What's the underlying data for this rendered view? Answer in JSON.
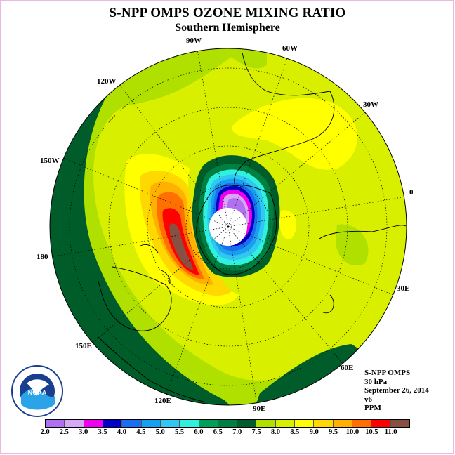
{
  "header": {
    "title": "S-NPP OMPS OZONE MIXING RATIO",
    "subtitle": "Southern Hemisphere"
  },
  "longitude_labels": [
    "90W",
    "60W",
    "30W",
    "0",
    "30E",
    "60E",
    "90E",
    "120E",
    "150E",
    "180",
    "150W",
    "120W"
  ],
  "info": {
    "instrument": "S-NPP OMPS",
    "level": "30 hPa",
    "date": "September 26, 2014",
    "version": "v6",
    "units": "PPM"
  },
  "colorbar": {
    "ticks": [
      "2.0",
      "2.5",
      "3.0",
      "3.5",
      "4.0",
      "4.5",
      "5.0",
      "5.5",
      "6.0",
      "6.5",
      "7.0",
      "7.5",
      "8.0",
      "8.5",
      "9.0",
      "9.5",
      "10.0",
      "10.5",
      "11.0"
    ],
    "colors": [
      "#b070f0",
      "#d8a8f8",
      "#f000f0",
      "#0000c8",
      "#1c6ef0",
      "#18a0f0",
      "#30c8f0",
      "#30f0e0",
      "#00a058",
      "#008040",
      "#005c28",
      "#b0e000",
      "#d8f000",
      "#ffff00",
      "#ffd800",
      "#ffb000",
      "#ff7000",
      "#ff0000",
      "#885040"
    ]
  },
  "logo": {
    "text": "NOAA",
    "icon": "noaa-logo-icon"
  }
}
